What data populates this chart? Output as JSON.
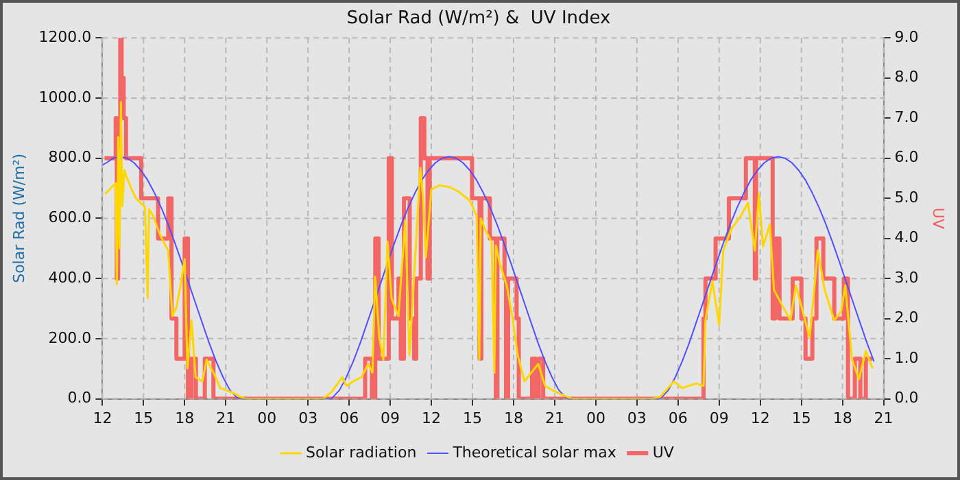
{
  "chart_data": {
    "type": "line",
    "title": "Solar Rad (W/m²) &  UV Index",
    "ylabel": "Solar Rad (W/m²)",
    "y2label": "UV",
    "xlim": [
      12,
      69
    ],
    "xticks": [
      {
        "value": 12,
        "label": "12"
      },
      {
        "value": 15,
        "label": "15"
      },
      {
        "value": 18,
        "label": "18"
      },
      {
        "value": 21,
        "label": "21"
      },
      {
        "value": 24,
        "label": "00"
      },
      {
        "value": 27,
        "label": "03"
      },
      {
        "value": 30,
        "label": "06"
      },
      {
        "value": 33,
        "label": "09"
      },
      {
        "value": 36,
        "label": "12"
      },
      {
        "value": 39,
        "label": "15"
      },
      {
        "value": 42,
        "label": "18"
      },
      {
        "value": 45,
        "label": "21"
      },
      {
        "value": 48,
        "label": "00"
      },
      {
        "value": 51,
        "label": "03"
      },
      {
        "value": 54,
        "label": "06"
      },
      {
        "value": 57,
        "label": "09"
      },
      {
        "value": 60,
        "label": "12"
      },
      {
        "value": 63,
        "label": "15"
      },
      {
        "value": 66,
        "label": "18"
      },
      {
        "value": 69,
        "label": "21"
      }
    ],
    "ylim": [
      0,
      1200
    ],
    "yticks": [
      {
        "value": 0,
        "label": "0.0"
      },
      {
        "value": 200,
        "label": "200.0"
      },
      {
        "value": 400,
        "label": "400.0"
      },
      {
        "value": 600,
        "label": "600.0"
      },
      {
        "value": 800,
        "label": "800.0"
      },
      {
        "value": 1000,
        "label": "1000.0"
      },
      {
        "value": 1200,
        "label": "1200.0"
      }
    ],
    "y2lim": [
      0,
      9
    ],
    "y2ticks": [
      {
        "value": 0,
        "label": "0.0"
      },
      {
        "value": 1,
        "label": "1.0"
      },
      {
        "value": 2,
        "label": "2.0"
      },
      {
        "value": 3,
        "label": "3.0"
      },
      {
        "value": 4,
        "label": "4.0"
      },
      {
        "value": 5,
        "label": "5.0"
      },
      {
        "value": 6,
        "label": "6.0"
      },
      {
        "value": 7,
        "label": "7.0"
      },
      {
        "value": 8,
        "label": "8.0"
      },
      {
        "value": 9,
        "label": "9.0"
      }
    ],
    "grid": true,
    "legend": "bottom",
    "marker": "none",
    "line_style": "solid",
    "series": [
      {
        "name": "Solar radiation",
        "type": "line",
        "color": "#ffd700",
        "x": [
          12.2,
          12.6,
          12.97,
          13.05,
          13.15,
          13.25,
          13.35,
          13.45,
          13.6,
          13.75,
          14.1,
          14.44,
          14.8,
          15.1,
          15.3,
          15.4,
          15.7,
          16.0,
          16.3,
          16.8,
          17.1,
          17.4,
          17.7,
          18.0,
          18.2,
          18.5,
          18.8,
          19.3,
          19.6,
          20.1,
          20.6,
          21.4,
          22.4,
          28.1,
          28.7,
          29.5,
          29.8,
          30.3,
          30.9,
          31.4,
          31.7,
          31.9,
          32.2,
          32.5,
          32.8,
          33.1,
          33.6,
          34.1,
          34.4,
          34.7,
          35.2,
          35.4,
          35.6,
          36.0,
          36.6,
          37.4,
          38.0,
          38.8,
          39.3,
          39.5,
          39.6,
          39.9,
          40.4,
          40.6,
          40.7,
          41.0,
          41.5,
          41.9,
          42.3,
          42.8,
          43.3,
          43.8,
          44.3,
          44.8,
          45.5,
          46.3,
          52.1,
          52.7,
          53.7,
          54.3,
          55.3,
          55.86,
          56.0,
          56.5,
          57.0,
          57.3,
          57.9,
          58.6,
          59.1,
          59.6,
          59.9,
          60.2,
          60.7,
          61.0,
          61.5,
          62.2,
          62.6,
          63.1,
          63.6,
          64.2,
          64.7,
          65.4,
          65.9,
          66.2,
          66.7,
          67.2,
          67.7,
          68.2
        ],
        "values": [
          681,
          700,
          717,
          381,
          870,
          500,
          986,
          640,
          760,
          739,
          700,
          667,
          650,
          638,
          335,
          630,
          609,
          570,
          536,
          493,
          275,
          304,
          377,
          464,
          101,
          261,
          72,
          58,
          130,
          87,
          36,
          22,
          0,
          0,
          22,
          72,
          43,
          58,
          72,
          116,
          87,
          406,
          203,
          130,
          522,
          333,
          275,
          594,
          145,
          377,
          768,
          667,
          470,
          696,
          710,
          703,
          688,
          659,
          609,
          130,
          600,
          565,
          522,
          87,
          510,
          449,
          377,
          275,
          145,
          58,
          87,
          116,
          43,
          29,
          14,
          0,
          0,
          7,
          58,
          36,
          51,
          43,
          261,
          391,
          246,
          493,
          565,
          609,
          652,
          493,
          681,
          507,
          580,
          362,
          319,
          261,
          377,
          290,
          203,
          493,
          362,
          261,
          290,
          377,
          130,
          65,
          159,
          101
        ]
      },
      {
        "name": "Theoretical solar max",
        "type": "line",
        "color": "#5050ff",
        "x": [
          12.0,
          12.3,
          12.8,
          13.3,
          13.8,
          14.3,
          14.8,
          15.3,
          15.8,
          16.3,
          16.8,
          17.3,
          17.8,
          18.3,
          18.8,
          19.3,
          19.8,
          20.3,
          20.8,
          21.3,
          21.9,
          28.7,
          29.3,
          29.8,
          30.3,
          30.8,
          31.3,
          31.8,
          32.3,
          32.8,
          33.3,
          33.8,
          34.3,
          34.8,
          35.3,
          35.8,
          36.3,
          36.8,
          37.3,
          37.8,
          38.3,
          38.8,
          39.3,
          39.8,
          40.3,
          40.8,
          41.3,
          41.8,
          42.3,
          42.8,
          43.3,
          43.8,
          44.3,
          44.8,
          45.3,
          45.9,
          52.7,
          53.3,
          53.8,
          54.3,
          54.8,
          55.3,
          55.8,
          56.3,
          56.8,
          57.3,
          57.8,
          58.3,
          58.8,
          59.3,
          59.8,
          60.3,
          60.8,
          61.3,
          61.8,
          62.3,
          62.8,
          63.3,
          63.8,
          64.3,
          64.8,
          65.3,
          65.8,
          66.3,
          66.8,
          67.3,
          67.8,
          68.3
        ],
        "values": [
          777,
          785,
          800,
          805,
          800,
          785,
          760,
          727,
          684,
          635,
          579,
          517,
          452,
          384,
          317,
          250,
          184,
          124,
          72,
          29,
          0,
          0,
          29,
          72,
          124,
          184,
          250,
          317,
          384,
          452,
          517,
          579,
          635,
          684,
          727,
          760,
          785,
          800,
          805,
          800,
          785,
          760,
          727,
          684,
          635,
          579,
          517,
          452,
          384,
          317,
          250,
          184,
          124,
          72,
          29,
          0,
          0,
          29,
          72,
          124,
          184,
          250,
          317,
          384,
          452,
          517,
          579,
          635,
          684,
          727,
          760,
          785,
          800,
          805,
          800,
          785,
          760,
          727,
          684,
          635,
          579,
          517,
          452,
          384,
          317,
          250,
          184,
          124
        ]
      },
      {
        "name": "UV",
        "type": "step",
        "axis": "y2",
        "color": "#f26666",
        "x": [
          12.16,
          12.97,
          13.05,
          13.15,
          13.3,
          13.4,
          13.55,
          13.72,
          14.83,
          16.06,
          16.8,
          17.04,
          17.4,
          18.0,
          18.24,
          18.5,
          18.82,
          19.47,
          20.1,
          31.17,
          31.66,
          31.91,
          32.15,
          32.89,
          33.12,
          33.6,
          33.77,
          34.0,
          34.42,
          34.74,
          34.9,
          35.23,
          35.49,
          35.72,
          35.88,
          38.97,
          39.52,
          39.65,
          40.27,
          40.7,
          40.82,
          41.34,
          41.45,
          41.6,
          42.22,
          42.38,
          43.35,
          43.6,
          43.84,
          44.16,
          55.86,
          56.0,
          56.74,
          57.71,
          58.95,
          59.6,
          59.7,
          60.9,
          61.1,
          61.4,
          62.36,
          63.0,
          63.3,
          63.8,
          64.1,
          64.6,
          65.4,
          66.1,
          66.4,
          66.9,
          67.3,
          67.7,
          68.2
        ],
        "values": [
          6,
          7,
          3,
          7,
          9,
          8,
          7,
          6,
          5,
          4,
          5,
          2,
          1,
          4,
          0,
          1,
          0,
          1,
          0,
          1,
          0,
          4,
          1,
          6,
          2,
          3,
          1,
          5,
          2,
          1,
          3,
          7,
          6,
          3,
          6,
          5,
          1,
          5,
          4,
          0,
          4,
          3,
          0,
          3,
          2,
          0,
          1,
          0,
          1,
          0,
          2,
          3,
          4,
          5,
          6,
          3,
          6,
          2,
          4,
          2,
          3,
          2,
          1,
          2,
          4,
          3,
          2,
          3,
          0,
          1,
          0,
          1,
          1
        ]
      }
    ]
  }
}
